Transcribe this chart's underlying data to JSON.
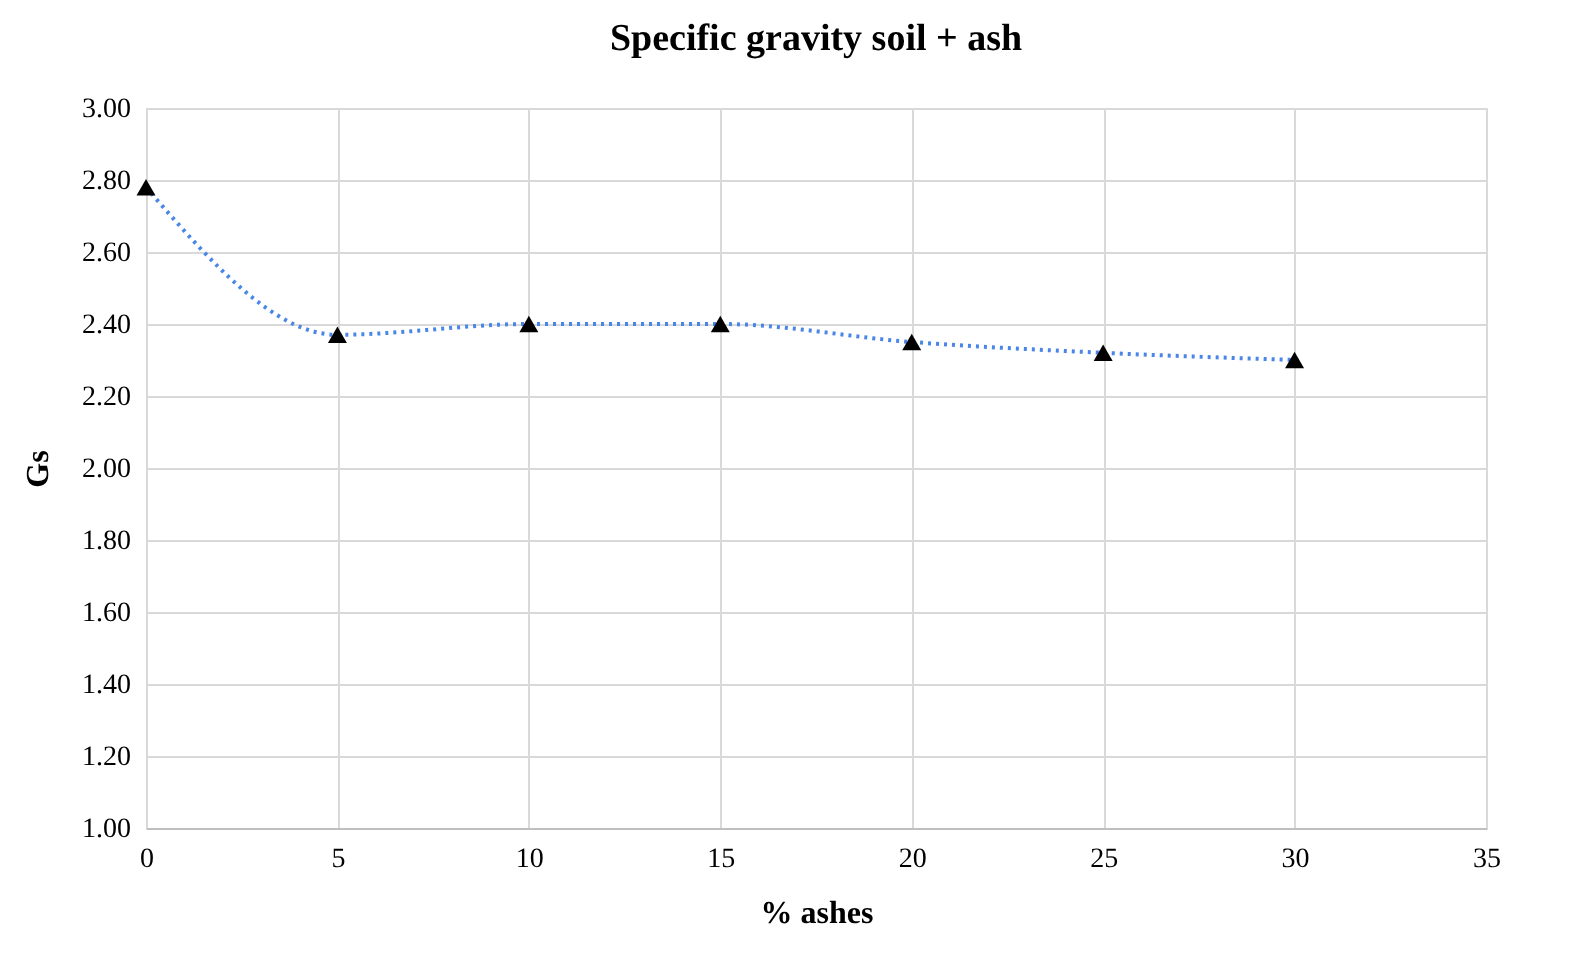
{
  "chart_data": {
    "type": "line",
    "title": "Specific gravity soil + ash",
    "xlabel": "% ashes",
    "ylabel": "Gs",
    "x": [
      0,
      5,
      10,
      15,
      20,
      25,
      30
    ],
    "series": [
      {
        "color": "#4a86e8",
        "values": [
          2.78,
          2.37,
          2.4,
          2.4,
          2.35,
          2.32,
          2.3
        ]
      }
    ],
    "xlim": [
      0,
      35
    ],
    "xticks": [
      0,
      5,
      10,
      15,
      20,
      25,
      30,
      35
    ],
    "ylim": [
      1.0,
      3.0
    ],
    "yticks": [
      {
        "value": 1.0,
        "label": "1.00"
      },
      {
        "value": 1.2,
        "label": "1.20"
      },
      {
        "value": 1.4,
        "label": "1.40"
      },
      {
        "value": 1.6,
        "label": "1.60"
      },
      {
        "value": 1.8,
        "label": "1.80"
      },
      {
        "value": 2.0,
        "label": "2.00"
      },
      {
        "value": 2.2,
        "label": "2.20"
      },
      {
        "value": 2.4,
        "label": "2.40"
      },
      {
        "value": 2.6,
        "label": "2.60"
      },
      {
        "value": 2.8,
        "label": "2.80"
      },
      {
        "value": 3.0,
        "label": "3.00"
      }
    ],
    "grid": true,
    "marker": "triangle",
    "line_style": "dotted"
  }
}
